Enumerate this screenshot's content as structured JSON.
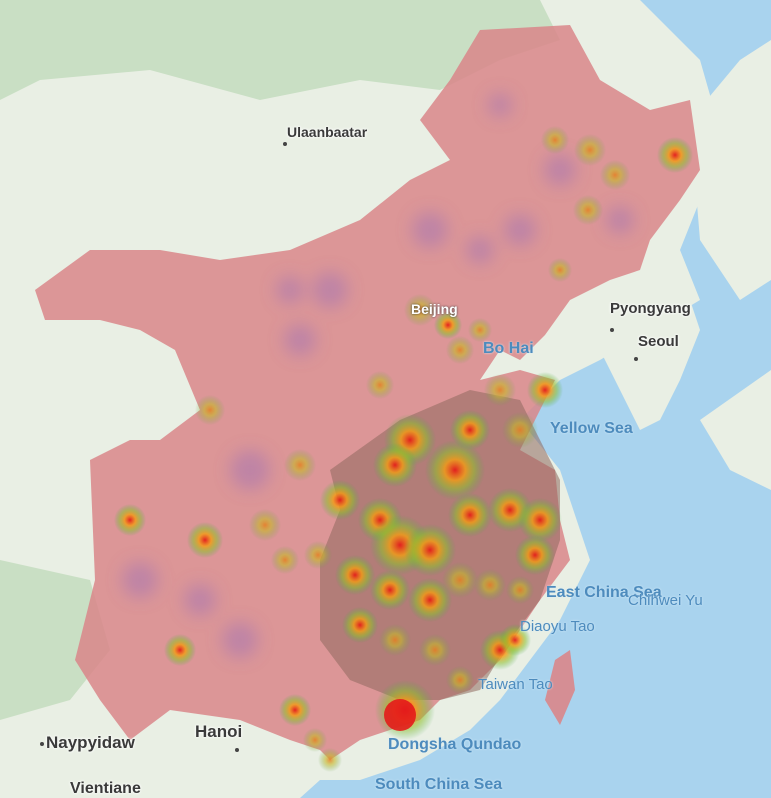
{
  "labels": {
    "ulaanbaatar": "Ulaanbaatar",
    "beijing": "Beijing",
    "bo_hai": "Bo Hai",
    "pyongyang": "Pyongyang",
    "seoul": "Seoul",
    "yellow_sea": "Yellow Sea",
    "east_china_sea": "East China Sea",
    "diaoyu_tao": "Diaoyu Tao",
    "chihwei_yu": "Chihwei Yu",
    "taiwan_tao": "Taiwan Tao",
    "hanoi": "Hanoi",
    "naypyidaw": "Naypyidaw",
    "dongsha_qundao": "Dongsha Qundao",
    "south_china_sea": "South China Sea",
    "vientiane": "Vientiane"
  },
  "colors": {
    "sea": "#a9d3ee",
    "land": "#e9efe4",
    "forest": "#c9dfc4",
    "region_fill": "#d9868a",
    "heat_low": "#2fd02f",
    "heat_mid": "#f1c40f",
    "heat_high": "#e31b1b"
  }
}
